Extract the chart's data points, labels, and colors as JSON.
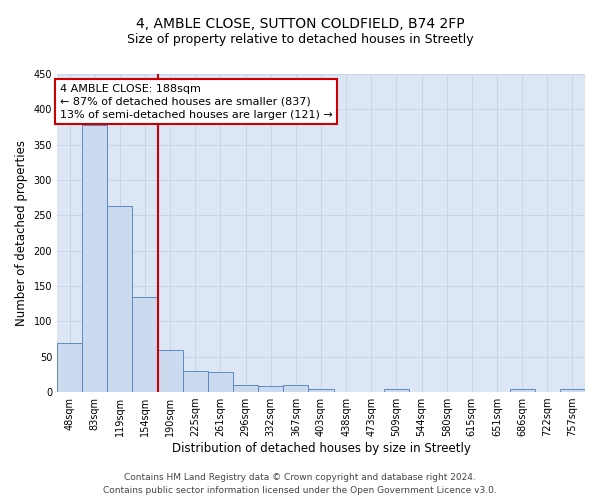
{
  "title_line1": "4, AMBLE CLOSE, SUTTON COLDFIELD, B74 2FP",
  "title_line2": "Size of property relative to detached houses in Streetly",
  "xlabel": "Distribution of detached houses by size in Streetly",
  "ylabel": "Number of detached properties",
  "categories": [
    "48sqm",
    "83sqm",
    "119sqm",
    "154sqm",
    "190sqm",
    "225sqm",
    "261sqm",
    "296sqm",
    "332sqm",
    "367sqm",
    "403sqm",
    "438sqm",
    "473sqm",
    "509sqm",
    "544sqm",
    "580sqm",
    "615sqm",
    "651sqm",
    "686sqm",
    "722sqm",
    "757sqm"
  ],
  "bar_values": [
    70,
    378,
    263,
    135,
    59,
    30,
    28,
    10,
    8,
    10,
    5,
    0,
    0,
    5,
    0,
    0,
    0,
    0,
    5,
    0,
    5
  ],
  "bar_color": "#ccdaf0",
  "bar_edge_color": "#5a8ac6",
  "vline_x": 3.5,
  "vline_color": "#cc0000",
  "annotation_text": "4 AMBLE CLOSE: 188sqm\n← 87% of detached houses are smaller (837)\n13% of semi-detached houses are larger (121) →",
  "annotation_box_color": "#ffffff",
  "annotation_box_edge": "#cc0000",
  "ylim": [
    0,
    450
  ],
  "yticks": [
    0,
    50,
    100,
    150,
    200,
    250,
    300,
    350,
    400,
    450
  ],
  "grid_color": "#c8d4e8",
  "background_color": "#dce6f5",
  "footer_line1": "Contains HM Land Registry data © Crown copyright and database right 2024.",
  "footer_line2": "Contains public sector information licensed under the Open Government Licence v3.0.",
  "title_fontsize": 10,
  "subtitle_fontsize": 9,
  "axis_label_fontsize": 8.5,
  "tick_fontsize": 7,
  "annotation_fontsize": 8,
  "footer_fontsize": 6.5
}
